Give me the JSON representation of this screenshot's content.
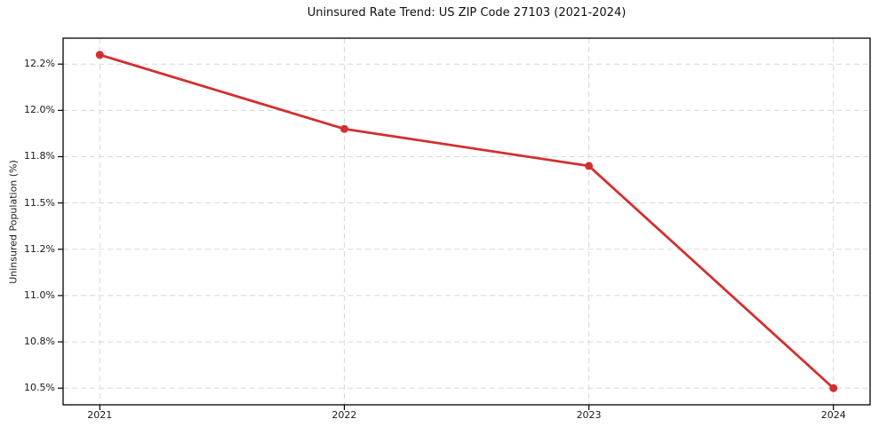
{
  "chart_data": {
    "type": "line",
    "title": "Uninsured Rate Trend: US ZIP Code 27103 (2021-2024)",
    "xlabel": "",
    "ylabel": "Uninsured Population (%)",
    "x": [
      2021,
      2022,
      2023,
      2024
    ],
    "series": [
      {
        "name": "Uninsured rate",
        "values": [
          12.3,
          11.9,
          11.7,
          10.5
        ],
        "color": "#d32f2f",
        "marker": "circle",
        "line_width": 2.8,
        "marker_radius": 4.5
      }
    ],
    "xlim": [
      2020.85,
      2024.15
    ],
    "ylim": [
      10.41,
      12.39
    ],
    "xticks": [
      {
        "value": 2021,
        "label": "2021"
      },
      {
        "value": 2022,
        "label": "2022"
      },
      {
        "value": 2023,
        "label": "2023"
      },
      {
        "value": 2024,
        "label": "2024"
      }
    ],
    "yticks": [
      {
        "value": 12.25,
        "label": "12.2%"
      },
      {
        "value": 12.0,
        "label": "12.0%"
      },
      {
        "value": 11.75,
        "label": "11.8%"
      },
      {
        "value": 11.5,
        "label": "11.5%"
      },
      {
        "value": 11.25,
        "label": "11.2%"
      },
      {
        "value": 11.0,
        "label": "11.0%"
      },
      {
        "value": 10.75,
        "label": "10.8%"
      },
      {
        "value": 10.5,
        "label": "10.5%"
      }
    ],
    "grid": true,
    "grid_style": "dashed",
    "grid_color": "#d8d8d8",
    "axis_color": "#000000",
    "background": "#ffffff",
    "legend_position": "none"
  }
}
